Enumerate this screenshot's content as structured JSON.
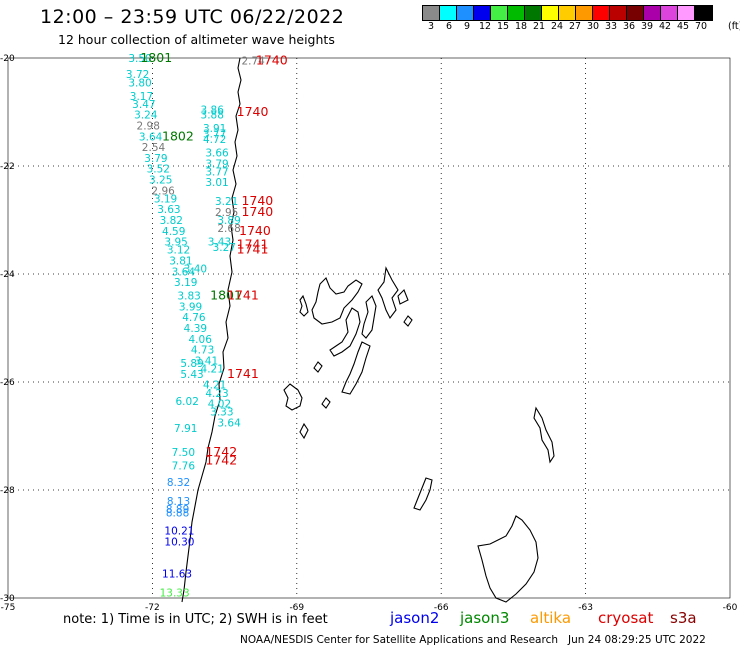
{
  "header": {
    "title": "12:00 – 23:59 UTC 06/22/2022",
    "subtitle": "12 hour collection of altimeter wave heights"
  },
  "legend": {
    "unit": "(ft)",
    "scale": [
      {
        "label": "3",
        "color": "#8a8a8a"
      },
      {
        "label": "6",
        "color": "#00ffff"
      },
      {
        "label": "9",
        "color": "#1e90ff"
      },
      {
        "label": "12",
        "color": "#0000ee"
      },
      {
        "label": "15",
        "color": "#44ee44"
      },
      {
        "label": "18",
        "color": "#00bb00"
      },
      {
        "label": "21",
        "color": "#007700"
      },
      {
        "label": "24",
        "color": "#ffff00"
      },
      {
        "label": "27",
        "color": "#ffcc00"
      },
      {
        "label": "30",
        "color": "#ff9900"
      },
      {
        "label": "33",
        "color": "#ff0000"
      },
      {
        "label": "36",
        "color": "#bb0000"
      },
      {
        "label": "39",
        "color": "#770000"
      },
      {
        "label": "42",
        "color": "#aa00aa"
      },
      {
        "label": "45",
        "color": "#dd44dd"
      },
      {
        "label": "70",
        "color": "#ff99ff"
      },
      {
        "label": "",
        "color": "#000000"
      }
    ]
  },
  "axes": {
    "lon_ticks": [
      "-75",
      "-72",
      "-69",
      "-66",
      "-63",
      "-60"
    ],
    "lat_ticks": [
      "-20",
      "-22",
      "-24",
      "-26",
      "-28",
      "-30"
    ]
  },
  "observations": [
    {
      "text": "3.50",
      "lon": -72.5,
      "lat": -20.0,
      "color": "#00cccc"
    },
    {
      "text": "1801",
      "lon": -72.25,
      "lat": -20.0,
      "color": "#007700"
    },
    {
      "text": "3.72",
      "lon": -72.55,
      "lat": -20.3,
      "color": "#00cccc"
    },
    {
      "text": "3.80",
      "lon": -72.5,
      "lat": -20.45,
      "color": "#00cccc"
    },
    {
      "text": "3.17",
      "lon": -72.47,
      "lat": -20.7,
      "color": "#00cccc"
    },
    {
      "text": "3.47",
      "lon": -72.42,
      "lat": -20.85,
      "color": "#00cccc"
    },
    {
      "text": "3.24",
      "lon": -72.38,
      "lat": -21.05,
      "color": "#00cccc"
    },
    {
      "text": "2.98",
      "lon": -72.33,
      "lat": -21.25,
      "color": "#777777"
    },
    {
      "text": "3.64",
      "lon": -72.28,
      "lat": -21.45,
      "color": "#00cccc"
    },
    {
      "text": "1802",
      "lon": -71.8,
      "lat": -21.45,
      "color": "#007700"
    },
    {
      "text": "2.54",
      "lon": -72.22,
      "lat": -21.65,
      "color": "#777777"
    },
    {
      "text": "3.79",
      "lon": -72.17,
      "lat": -21.85,
      "color": "#00cccc"
    },
    {
      "text": "3.52",
      "lon": -72.12,
      "lat": -22.05,
      "color": "#00cccc"
    },
    {
      "text": "3.25",
      "lon": -72.07,
      "lat": -22.25,
      "color": "#00cccc"
    },
    {
      "text": "2.96",
      "lon": -72.02,
      "lat": -22.45,
      "color": "#777777"
    },
    {
      "text": "3.19",
      "lon": -71.97,
      "lat": -22.6,
      "color": "#00cccc"
    },
    {
      "text": "3.63",
      "lon": -71.9,
      "lat": -22.8,
      "color": "#00cccc"
    },
    {
      "text": "3.82",
      "lon": -71.85,
      "lat": -23.0,
      "color": "#00cccc"
    },
    {
      "text": "4.59",
      "lon": -71.8,
      "lat": -23.2,
      "color": "#00cccc"
    },
    {
      "text": "3.95",
      "lon": -71.75,
      "lat": -23.4,
      "color": "#00cccc"
    },
    {
      "text": "3.12",
      "lon": -71.7,
      "lat": -23.55,
      "color": "#00cccc"
    },
    {
      "text": "3.81",
      "lon": -71.65,
      "lat": -23.75,
      "color": "#00cccc"
    },
    {
      "text": "3.40",
      "lon": -71.35,
      "lat": -23.9,
      "color": "#00cccc"
    },
    {
      "text": "3.64",
      "lon": -71.6,
      "lat": -23.95,
      "color": "#00cccc"
    },
    {
      "text": "3.19",
      "lon": -71.55,
      "lat": -24.15,
      "color": "#00cccc"
    },
    {
      "text": "3.83",
      "lon": -71.48,
      "lat": -24.4,
      "color": "#00cccc"
    },
    {
      "text": "1801",
      "lon": -70.8,
      "lat": -24.4,
      "color": "#007700"
    },
    {
      "text": "1741",
      "lon": -70.45,
      "lat": -24.4,
      "color": "#dd0000"
    },
    {
      "text": "3.99",
      "lon": -71.45,
      "lat": -24.6,
      "color": "#00cccc"
    },
    {
      "text": "4.76",
      "lon": -71.38,
      "lat": -24.8,
      "color": "#00cccc"
    },
    {
      "text": "4.39",
      "lon": -71.35,
      "lat": -25.0,
      "color": "#00cccc"
    },
    {
      "text": "4.06",
      "lon": -71.25,
      "lat": -25.2,
      "color": "#00cccc"
    },
    {
      "text": "4.73",
      "lon": -71.2,
      "lat": -25.4,
      "color": "#00cccc"
    },
    {
      "text": "3.41",
      "lon": -71.12,
      "lat": -25.6,
      "color": "#00cccc"
    },
    {
      "text": "5.89",
      "lon": -71.42,
      "lat": -25.65,
      "color": "#00cccc"
    },
    {
      "text": "4.21",
      "lon": -71.0,
      "lat": -25.75,
      "color": "#00cccc"
    },
    {
      "text": "5.43",
      "lon": -71.42,
      "lat": -25.85,
      "color": "#00cccc"
    },
    {
      "text": "1741",
      "lon": -70.45,
      "lat": -25.85,
      "color": "#dd0000"
    },
    {
      "text": "4.21",
      "lon": -70.95,
      "lat": -26.05,
      "color": "#00cccc"
    },
    {
      "text": "4.23",
      "lon": -70.9,
      "lat": -26.2,
      "color": "#00cccc"
    },
    {
      "text": "6.02",
      "lon": -71.52,
      "lat": -26.35,
      "color": "#00cccc"
    },
    {
      "text": "4.02",
      "lon": -70.85,
      "lat": -26.4,
      "color": "#00cccc"
    },
    {
      "text": "3.33",
      "lon": -70.8,
      "lat": -26.55,
      "color": "#00cccc"
    },
    {
      "text": "3.64",
      "lon": -70.65,
      "lat": -26.75,
      "color": "#00cccc"
    },
    {
      "text": "7.91",
      "lon": -71.55,
      "lat": -26.85,
      "color": "#00cccc"
    },
    {
      "text": "7.50",
      "lon": -71.6,
      "lat": -27.3,
      "color": "#00cccc"
    },
    {
      "text": "1742",
      "lon": -70.9,
      "lat": -27.3,
      "color": "#dd0000"
    },
    {
      "text": "1742",
      "lon": -70.9,
      "lat": -27.45,
      "color": "#dd0000"
    },
    {
      "text": "7.76",
      "lon": -71.6,
      "lat": -27.55,
      "color": "#00cccc"
    },
    {
      "text": "8.32",
      "lon": -71.7,
      "lat": -27.85,
      "color": "#1e90ff"
    },
    {
      "text": "8.13",
      "lon": -71.7,
      "lat": -28.2,
      "color": "#1e90ff"
    },
    {
      "text": "8.89",
      "lon": -71.72,
      "lat": -28.35,
      "color": "#1e90ff"
    },
    {
      "text": "8.88",
      "lon": -71.72,
      "lat": -28.42,
      "color": "#1e90ff"
    },
    {
      "text": "10.21",
      "lon": -71.75,
      "lat": -28.75,
      "color": "#0000ee"
    },
    {
      "text": "10.30",
      "lon": -71.75,
      "lat": -28.95,
      "color": "#0000ee"
    },
    {
      "text": "11.63",
      "lon": -71.8,
      "lat": -29.55,
      "color": "#0000ee"
    },
    {
      "text": "13.33",
      "lon": -71.85,
      "lat": -29.9,
      "color": "#44ee44"
    },
    {
      "text": "2.74",
      "lon": -70.15,
      "lat": -20.05,
      "color": "#777777"
    },
    {
      "text": "1740",
      "lon": -69.85,
      "lat": -20.05,
      "color": "#dd0000"
    },
    {
      "text": "3.86",
      "lon": -71.0,
      "lat": -20.95,
      "color": "#00cccc"
    },
    {
      "text": "3.88",
      "lon": -71.0,
      "lat": -21.05,
      "color": "#00cccc"
    },
    {
      "text": "1740",
      "lon": -70.25,
      "lat": -21.0,
      "color": "#dd0000"
    },
    {
      "text": "3.91",
      "lon": -70.95,
      "lat": -21.3,
      "color": "#00cccc"
    },
    {
      "text": "3.77",
      "lon": -70.95,
      "lat": -21.4,
      "color": "#00cccc"
    },
    {
      "text": "4.72",
      "lon": -70.95,
      "lat": -21.5,
      "color": "#00cccc"
    },
    {
      "text": "3.66",
      "lon": -70.9,
      "lat": -21.75,
      "color": "#00cccc"
    },
    {
      "text": "3.79",
      "lon": -70.9,
      "lat": -21.95,
      "color": "#00cccc"
    },
    {
      "text": "3.77",
      "lon": -70.9,
      "lat": -22.1,
      "color": "#00cccc"
    },
    {
      "text": "3.01",
      "lon": -70.9,
      "lat": -22.3,
      "color": "#00cccc"
    },
    {
      "text": "3.21",
      "lon": -70.7,
      "lat": -22.65,
      "color": "#00cccc"
    },
    {
      "text": "1740",
      "lon": -70.15,
      "lat": -22.65,
      "color": "#dd0000"
    },
    {
      "text": "2.95",
      "lon": -70.7,
      "lat": -22.85,
      "color": "#777777"
    },
    {
      "text": "1740",
      "lon": -70.15,
      "lat": -22.85,
      "color": "#dd0000"
    },
    {
      "text": "3.89",
      "lon": -70.65,
      "lat": -23.0,
      "color": "#00cccc"
    },
    {
      "text": "2.68",
      "lon": -70.65,
      "lat": -23.15,
      "color": "#777777"
    },
    {
      "text": "1740",
      "lon": -70.2,
      "lat": -23.2,
      "color": "#dd0000"
    },
    {
      "text": "3.43",
      "lon": -70.85,
      "lat": -23.4,
      "color": "#00cccc"
    },
    {
      "text": "3.27",
      "lon": -70.75,
      "lat": -23.5,
      "color": "#00cccc"
    },
    {
      "text": "1741",
      "lon": -70.25,
      "lat": -23.45,
      "color": "#dd0000"
    },
    {
      "text": "1741",
      "lon": -70.25,
      "lat": -23.55,
      "color": "#dd0000"
    }
  ],
  "footer": {
    "note": "note: 1) Time is in UTC; 2) SWH is in feet",
    "satellites": [
      {
        "name": "jason2",
        "color": "#0000ee"
      },
      {
        "name": "jason3",
        "color": "#008800"
      },
      {
        "name": "altika",
        "color": "#ff9900"
      },
      {
        "name": "cryosat",
        "color": "#dd0000"
      },
      {
        "name": "s3a",
        "color": "#880000"
      }
    ],
    "credit": "NOAA/NESDIS Center for Satellite Applications and Research",
    "timestamp": "Jun 24 08:29:25 UTC 2022"
  }
}
